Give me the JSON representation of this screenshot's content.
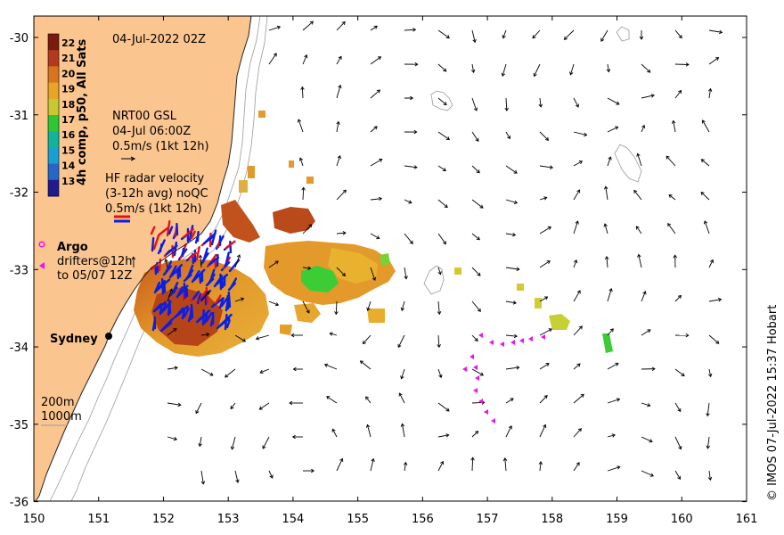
{
  "map": {
    "timestamp": "04-Jul-2022 02Z",
    "colorbar": {
      "label": "4h comp, p50, All Sats",
      "ticks": [
        "22",
        "21",
        "20",
        "19",
        "18",
        "17",
        "16",
        "15",
        "14",
        "13"
      ],
      "colors": [
        "#7a1a10",
        "#b33a1c",
        "#d8741e",
        "#e8a423",
        "#c9c830",
        "#2ec734",
        "#12b39a",
        "#1a9fd2",
        "#2766c9",
        "#201a8e"
      ]
    },
    "gsl_legend": {
      "line1": "NRT00 GSL",
      "line2": "04-Jul 06:00Z",
      "line3": "0.5m/s (1kt 12h)"
    },
    "radar_legend": {
      "line1": "HF radar velocity",
      "line2": "(3-12h avg) noQC",
      "line3": "0.5m/s (1kt 12h)"
    },
    "argo_label": "Argo",
    "drifters_label_1": "drifters@12h",
    "drifters_label_2": "to 05/07 12Z",
    "city_label": "Sydney",
    "depth_legend_1": "200m",
    "depth_legend_2": "1000m",
    "copyright": "© IMOS 07-Jul-2022 15:37 Hobart",
    "x_ticks": [
      "150",
      "151",
      "152",
      "153",
      "154",
      "155",
      "156",
      "157",
      "158",
      "159",
      "160",
      "161"
    ],
    "y_ticks": [
      "-30",
      "-31",
      "-32",
      "-33",
      "-34",
      "-35",
      "-36"
    ],
    "colors": {
      "land": "#fbc590",
      "radar_a": "#0a1ee6",
      "radar_b": "#e61212",
      "drifter": "#ee12ee",
      "argo": "#ee12ee"
    }
  }
}
